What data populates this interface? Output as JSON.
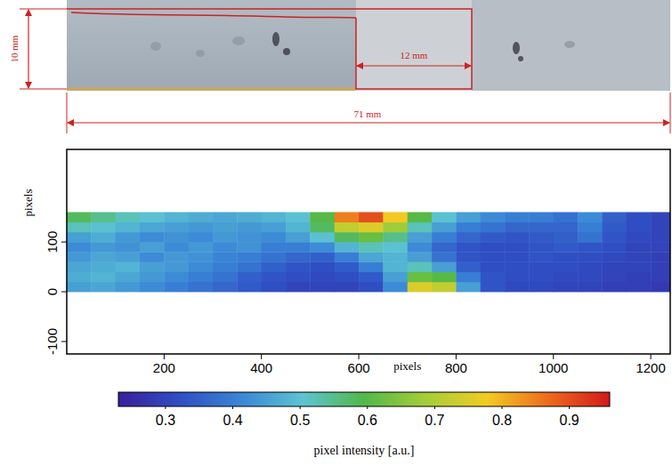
{
  "photo": {
    "labels": {
      "height": "10 mm",
      "window": "12 mm",
      "length": "71 mm"
    }
  },
  "chart_data": {
    "type": "heatmap",
    "xlabel": "pixels",
    "ylabel": "pixels",
    "xlim": [
      0,
      1240
    ],
    "ylim": [
      -125,
      286
    ],
    "xticks": [
      200,
      400,
      600,
      800,
      1000,
      1200
    ],
    "yticks": [
      -100,
      0,
      100
    ],
    "x_edges": [
      0,
      50,
      100,
      150,
      200,
      250,
      300,
      350,
      400,
      450,
      500,
      550,
      600,
      650,
      700,
      750,
      800,
      850,
      900,
      950,
      1000,
      1050,
      1100,
      1150,
      1200,
      1240
    ],
    "y_edges": [
      0,
      20,
      40,
      60,
      80,
      100,
      120,
      140,
      160
    ],
    "cells": [
      [
        0.45,
        0.46,
        0.44,
        0.42,
        0.4,
        0.38,
        0.36,
        0.34,
        0.32,
        0.3,
        0.3,
        0.3,
        0.32,
        0.42,
        0.75,
        0.72,
        0.45,
        0.33,
        0.31,
        0.31,
        0.3,
        0.3,
        0.29,
        0.29,
        0.28
      ],
      [
        0.47,
        0.48,
        0.46,
        0.44,
        0.42,
        0.4,
        0.38,
        0.35,
        0.33,
        0.32,
        0.31,
        0.32,
        0.34,
        0.45,
        0.62,
        0.6,
        0.4,
        0.33,
        0.32,
        0.32,
        0.31,
        0.31,
        0.3,
        0.29,
        0.29
      ],
      [
        0.46,
        0.47,
        0.48,
        0.45,
        0.44,
        0.42,
        0.4,
        0.38,
        0.35,
        0.33,
        0.32,
        0.34,
        0.4,
        0.48,
        0.52,
        0.45,
        0.35,
        0.32,
        0.32,
        0.32,
        0.32,
        0.31,
        0.3,
        0.3,
        0.29
      ],
      [
        0.44,
        0.46,
        0.45,
        0.42,
        0.44,
        0.43,
        0.41,
        0.4,
        0.38,
        0.36,
        0.35,
        0.4,
        0.46,
        0.48,
        0.45,
        0.38,
        0.33,
        0.32,
        0.32,
        0.33,
        0.32,
        0.32,
        0.31,
        0.3,
        0.29
      ],
      [
        0.42,
        0.44,
        0.43,
        0.45,
        0.42,
        0.44,
        0.42,
        0.43,
        0.4,
        0.4,
        0.42,
        0.48,
        0.52,
        0.5,
        0.42,
        0.36,
        0.33,
        0.32,
        0.32,
        0.33,
        0.34,
        0.33,
        0.32,
        0.3,
        0.3
      ],
      [
        0.45,
        0.47,
        0.44,
        0.42,
        0.43,
        0.42,
        0.44,
        0.43,
        0.42,
        0.45,
        0.5,
        0.58,
        0.62,
        0.55,
        0.45,
        0.4,
        0.36,
        0.34,
        0.33,
        0.34,
        0.35,
        0.38,
        0.33,
        0.31,
        0.3
      ],
      [
        0.52,
        0.5,
        0.48,
        0.46,
        0.45,
        0.44,
        0.45,
        0.44,
        0.45,
        0.48,
        0.58,
        0.72,
        0.75,
        0.68,
        0.52,
        0.45,
        0.4,
        0.38,
        0.36,
        0.36,
        0.36,
        0.4,
        0.34,
        0.32,
        0.3
      ],
      [
        0.58,
        0.55,
        0.52,
        0.5,
        0.48,
        0.47,
        0.46,
        0.47,
        0.48,
        0.5,
        0.6,
        0.85,
        0.9,
        0.78,
        0.6,
        0.5,
        0.45,
        0.42,
        0.4,
        0.4,
        0.38,
        0.42,
        0.35,
        0.32,
        0.3
      ]
    ],
    "colorbar": {
      "label": "pixel intensity [a.u.]",
      "range": [
        0.23,
        0.96
      ],
      "ticks": [
        0.3,
        0.4,
        0.5,
        0.6,
        0.7,
        0.8,
        0.9
      ],
      "colors": [
        "#3a1f9a",
        "#2f4fc4",
        "#3a86d6",
        "#5cc4d2",
        "#52b848",
        "#a5cd3a",
        "#f2cc22",
        "#ee6a1e",
        "#d21a1a"
      ]
    }
  }
}
